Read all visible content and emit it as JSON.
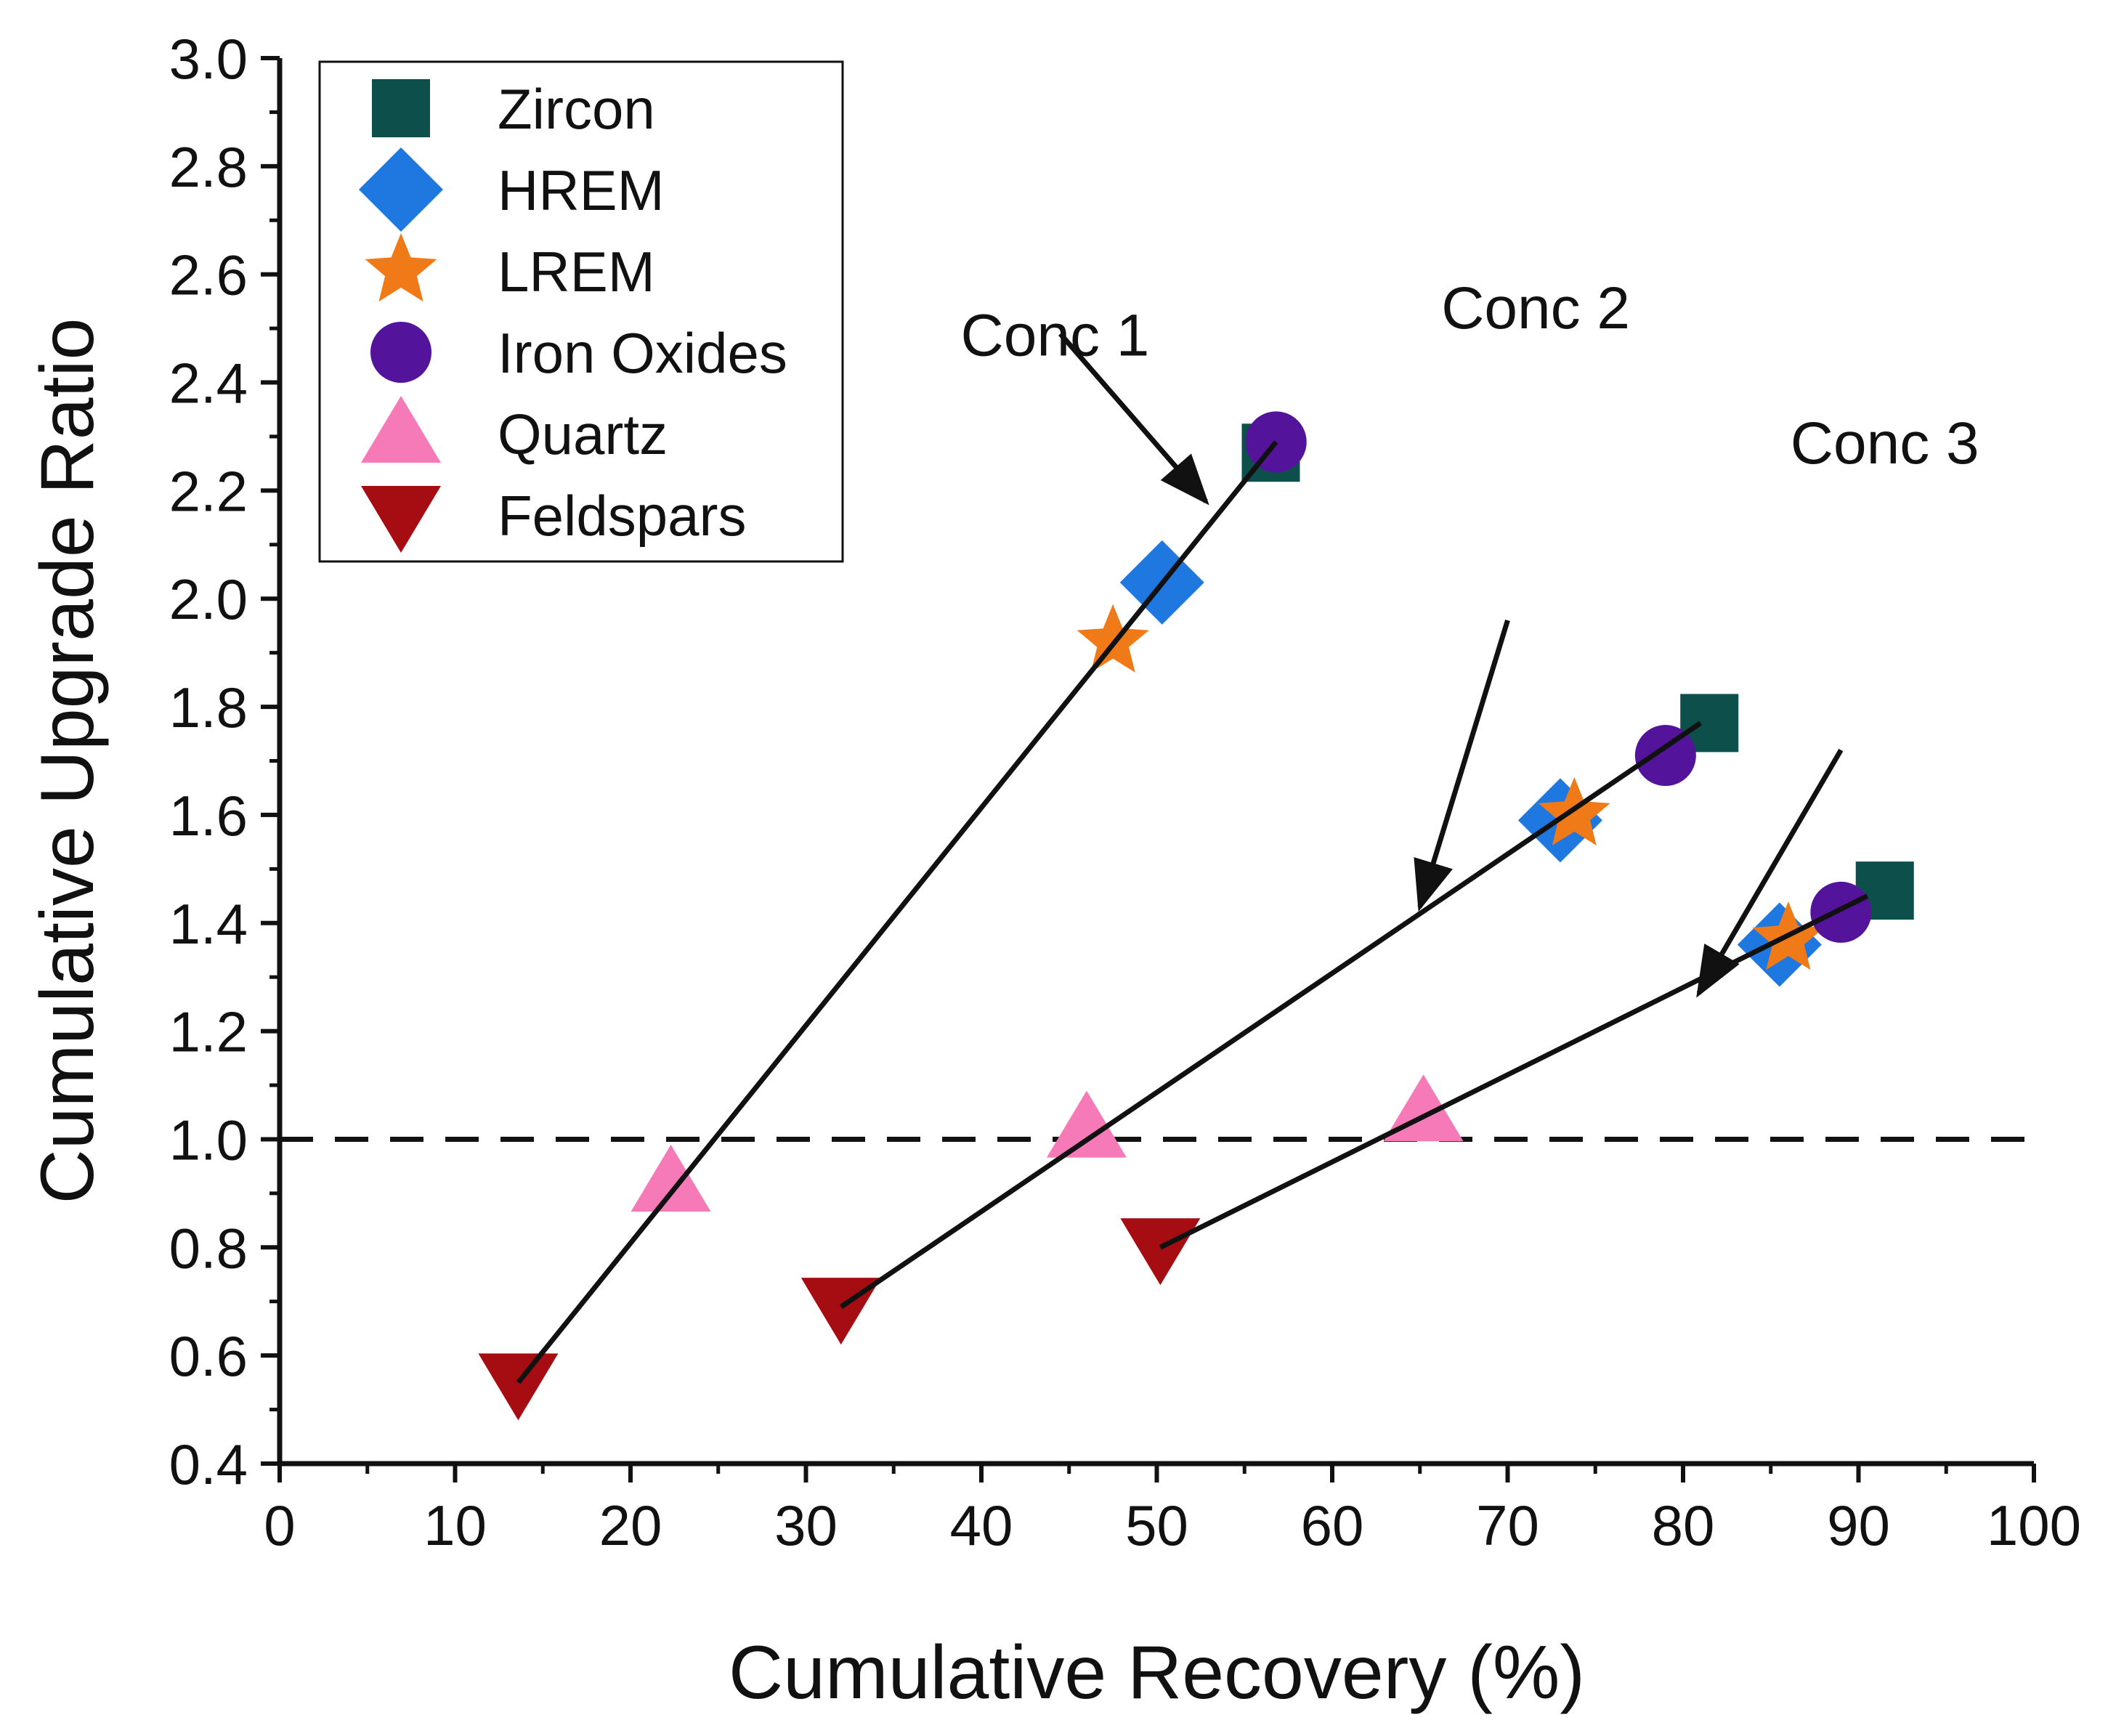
{
  "chart_data": {
    "type": "scatter",
    "title": "",
    "xlabel": "Cumulative Recovery (%)",
    "ylabel": "Cumulative Upgrade Ratio",
    "xlim": [
      0,
      100
    ],
    "ylim": [
      0.4,
      3.0
    ],
    "xticks": [
      0,
      10,
      20,
      30,
      40,
      50,
      60,
      70,
      80,
      90,
      100
    ],
    "yticks": [
      0.4,
      0.6,
      0.8,
      1.0,
      1.2,
      1.4,
      1.6,
      1.8,
      2.0,
      2.2,
      2.4,
      2.6,
      2.8,
      3.0
    ],
    "x_tick_labels": [
      "0",
      "10",
      "20",
      "30",
      "40",
      "50",
      "60",
      "70",
      "80",
      "90",
      "100"
    ],
    "y_tick_labels": [
      "0.4",
      "0.6",
      "0.8",
      "1.0",
      "1.2",
      "1.4",
      "1.6",
      "1.8",
      "2.0",
      "2.2",
      "2.4",
      "2.6",
      "2.8",
      "3.0"
    ],
    "legend_position": "top-left",
    "grid": false,
    "series": [
      {
        "name": "Zircon",
        "marker": "square",
        "color": "#0d4f4a",
        "points": [
          {
            "x": 56.5,
            "y": 2.27
          },
          {
            "x": 81.5,
            "y": 1.77
          },
          {
            "x": 91.5,
            "y": 1.46
          }
        ]
      },
      {
        "name": "HREM",
        "marker": "diamond",
        "color": "#1f77e0",
        "points": [
          {
            "x": 50.3,
            "y": 2.03
          },
          {
            "x": 73.0,
            "y": 1.59
          },
          {
            "x": 85.5,
            "y": 1.36
          }
        ]
      },
      {
        "name": "LREM",
        "marker": "star",
        "color": "#f07a18",
        "points": [
          {
            "x": 47.5,
            "y": 1.92
          },
          {
            "x": 73.8,
            "y": 1.6
          },
          {
            "x": 86.0,
            "y": 1.37
          }
        ]
      },
      {
        "name": "Iron Oxides",
        "marker": "circle",
        "color": "#53139a",
        "points": [
          {
            "x": 56.8,
            "y": 2.29
          },
          {
            "x": 79.0,
            "y": 1.71
          },
          {
            "x": 89.0,
            "y": 1.42
          }
        ]
      },
      {
        "name": "Quartz",
        "marker": "triangle-up",
        "color": "#f77ab8",
        "points": [
          {
            "x": 22.3,
            "y": 0.92
          },
          {
            "x": 46.0,
            "y": 1.02
          },
          {
            "x": 65.2,
            "y": 1.05
          }
        ]
      },
      {
        "name": "Feldspars",
        "marker": "triangle-down",
        "color": "#a60d12",
        "points": [
          {
            "x": 13.6,
            "y": 0.55
          },
          {
            "x": 32.0,
            "y": 0.69
          },
          {
            "x": 50.2,
            "y": 0.8
          }
        ]
      }
    ],
    "fit_lines": [
      {
        "name": "Conc 1",
        "x": [
          13.6,
          56.8
        ],
        "y": [
          0.55,
          2.29
        ]
      },
      {
        "name": "Conc 2",
        "x": [
          32.0,
          81.0
        ],
        "y": [
          0.69,
          1.77
        ]
      },
      {
        "name": "Conc 3",
        "x": [
          50.2,
          90.5
        ],
        "y": [
          0.8,
          1.45
        ]
      }
    ],
    "reference_line": {
      "y": 1.0,
      "style": "dashed"
    },
    "annotations": [
      {
        "text": "Conc 1",
        "x": 44.2,
        "y": 2.45,
        "target_x": 52.8,
        "target_y": 2.18,
        "tail_x": 44.5,
        "tail_y": 2.49
      },
      {
        "text": "Conc 2",
        "x": 71.6,
        "y": 2.5,
        "target_x": 65.0,
        "target_y": 1.43,
        "tail_x": 70.0,
        "tail_y": 1.96
      },
      {
        "text": "Conc 3",
        "x": 91.5,
        "y": 2.25,
        "target_x": 80.9,
        "target_y": 1.27,
        "tail_x": 89.0,
        "tail_y": 1.72
      }
    ]
  }
}
